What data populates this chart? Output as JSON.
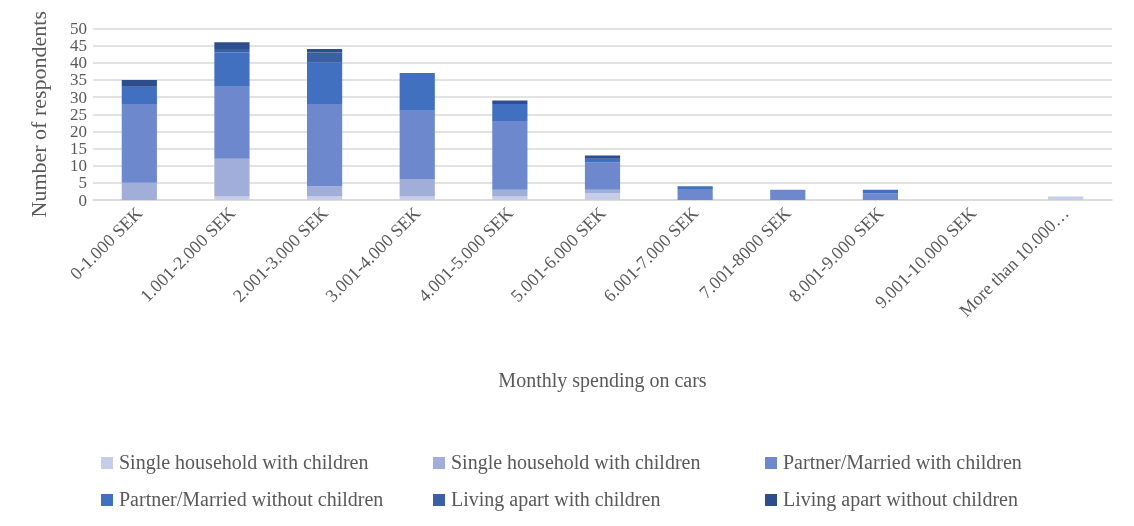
{
  "chart_data": {
    "type": "bar",
    "stacked": true,
    "xlabel": "Monthly spending on cars",
    "ylabel": "Number of respondents",
    "categories": [
      "0-1.000 SEK",
      "1.001-2.000 SEK",
      "2.001-3.000 SEK",
      "3.001-4.000 SEK",
      "4.001-5.000 SEK",
      "5.001-6.000 SEK",
      "6.001-7.000 SEK",
      "7.001-8000 SEK",
      "8.001-9.000 SEK",
      "9.001-10.000 SEK",
      "More than 10.000…"
    ],
    "series": [
      {
        "name": "Single household with children",
        "color": "#c5cde8",
        "values": [
          0,
          1,
          1,
          1,
          1,
          2,
          0,
          0,
          0,
          0,
          1
        ]
      },
      {
        "name": "Single household with children",
        "color": "#a0aed9",
        "values": [
          5,
          11,
          3,
          5,
          2,
          1,
          0,
          0,
          0,
          0,
          0
        ]
      },
      {
        "name": "Partner/Married with children",
        "color": "#6d88cc",
        "values": [
          23,
          21,
          24,
          20,
          20,
          8,
          3,
          3,
          2,
          0,
          0
        ]
      },
      {
        "name": "Partner/Married without children",
        "color": "#4070bf",
        "values": [
          5,
          10,
          12,
          11,
          5,
          1,
          1,
          0,
          1,
          0,
          0
        ]
      },
      {
        "name": "Living apart with children",
        "color": "#3a5fa5",
        "values": [
          0,
          1,
          3,
          0,
          0,
          0,
          0,
          0,
          0,
          0,
          0
        ]
      },
      {
        "name": "Living apart without children",
        "color": "#2e4d8c",
        "values": [
          2,
          2,
          1,
          0,
          1,
          1,
          0,
          0,
          0,
          0,
          0
        ]
      }
    ],
    "ylim": [
      0,
      50
    ],
    "yticks": [
      0,
      5,
      10,
      15,
      20,
      25,
      30,
      35,
      40,
      45,
      50
    ],
    "grid": "y",
    "legend": "bottom"
  }
}
